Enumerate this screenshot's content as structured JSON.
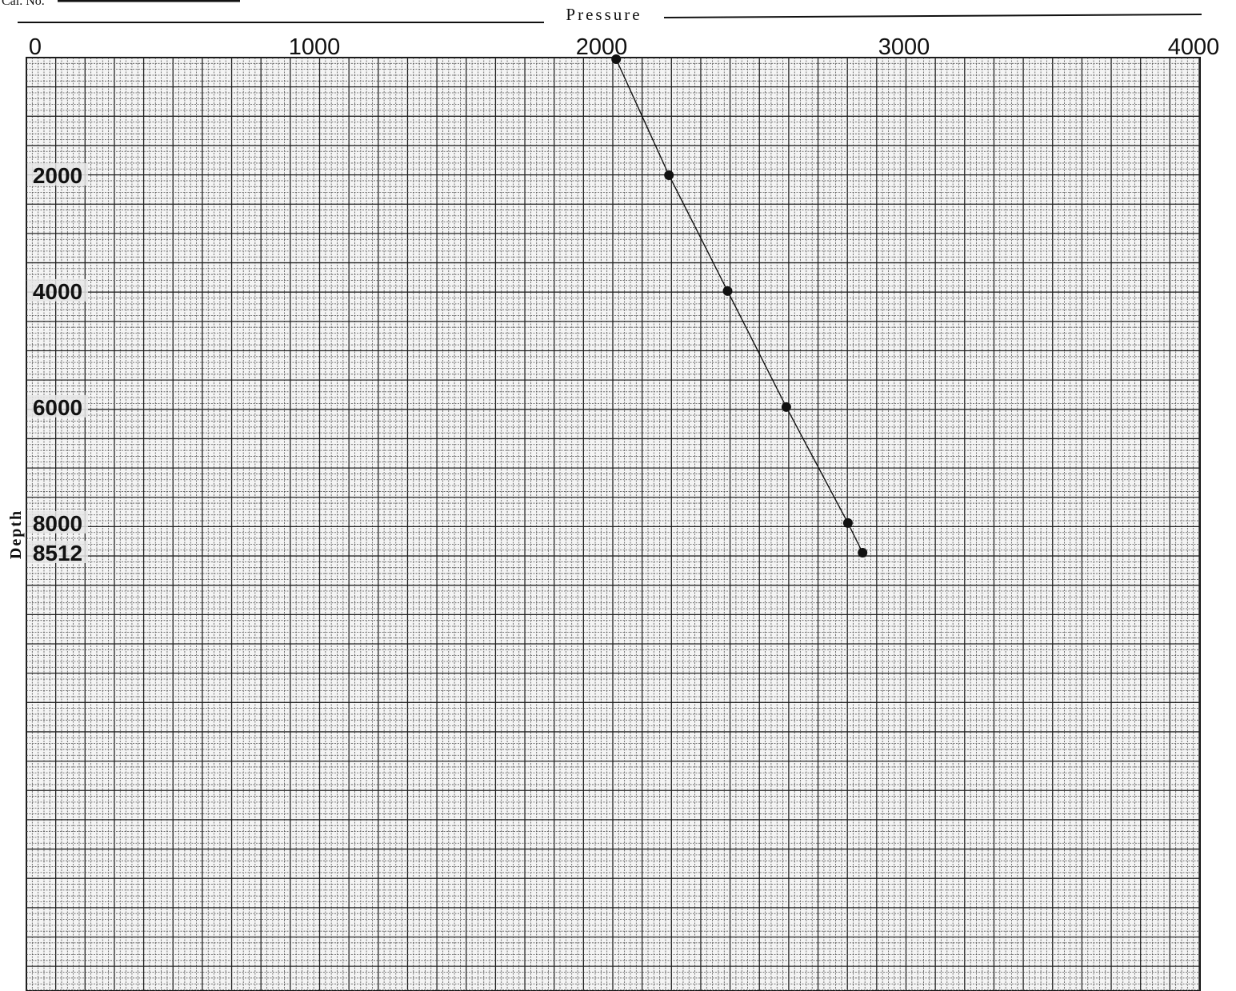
{
  "header": {
    "cal_label": "Cal. No."
  },
  "chart_data": {
    "type": "line",
    "title": "",
    "xlabel": "Pressure",
    "ylabel": "Depth",
    "xlim": [
      0,
      4000
    ],
    "ylim": [
      0,
      9512
    ],
    "x_ticks": [
      "0",
      "1000",
      "2000",
      "3000",
      "4000"
    ],
    "y_ticks": [
      "2000",
      "4000",
      "6000",
      "8000",
      "8512"
    ],
    "grid": true,
    "series": [
      {
        "x": [
          2010,
          2190,
          2390,
          2590,
          2800,
          2850
        ],
        "y": [
          0,
          2000,
          4000,
          6000,
          8000,
          8512
        ]
      }
    ]
  }
}
